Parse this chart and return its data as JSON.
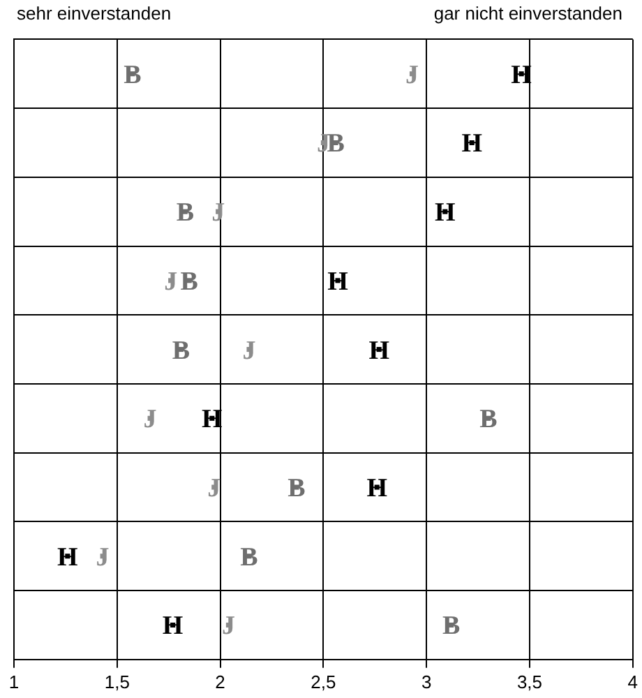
{
  "chart_data": {
    "type": "scatter",
    "orientation": "horizontal",
    "annotations": [
      "sehr einverstanden",
      "gar nicht einverstanden"
    ],
    "categories": [
      null,
      null,
      null,
      null,
      null,
      null,
      null,
      null,
      null
    ],
    "series": [
      {
        "name": "B",
        "color": "#6e6e6e",
        "values": [
          1.575,
          2.56,
          1.83,
          1.85,
          1.81,
          3.3,
          2.37,
          2.14,
          3.12
        ]
      },
      {
        "name": "J",
        "color": "#8c8c8c",
        "values": [
          2.93,
          2.5,
          1.99,
          1.76,
          2.14,
          1.66,
          1.97,
          1.43,
          2.04
        ]
      },
      {
        "name": "H",
        "color": "#000000",
        "values": [
          3.46,
          3.22,
          3.09,
          2.57,
          2.77,
          1.96,
          2.76,
          1.26,
          1.77
        ]
      }
    ],
    "xlim": [
      1,
      4
    ],
    "xticks": [
      1,
      {
        "value": 1.5,
        "label": "1,5"
      },
      2,
      {
        "value": 2.5,
        "label": "2,5"
      },
      3,
      {
        "value": 3.5,
        "label": "3,5"
      },
      4
    ],
    "grid": true,
    "legend": false
  }
}
